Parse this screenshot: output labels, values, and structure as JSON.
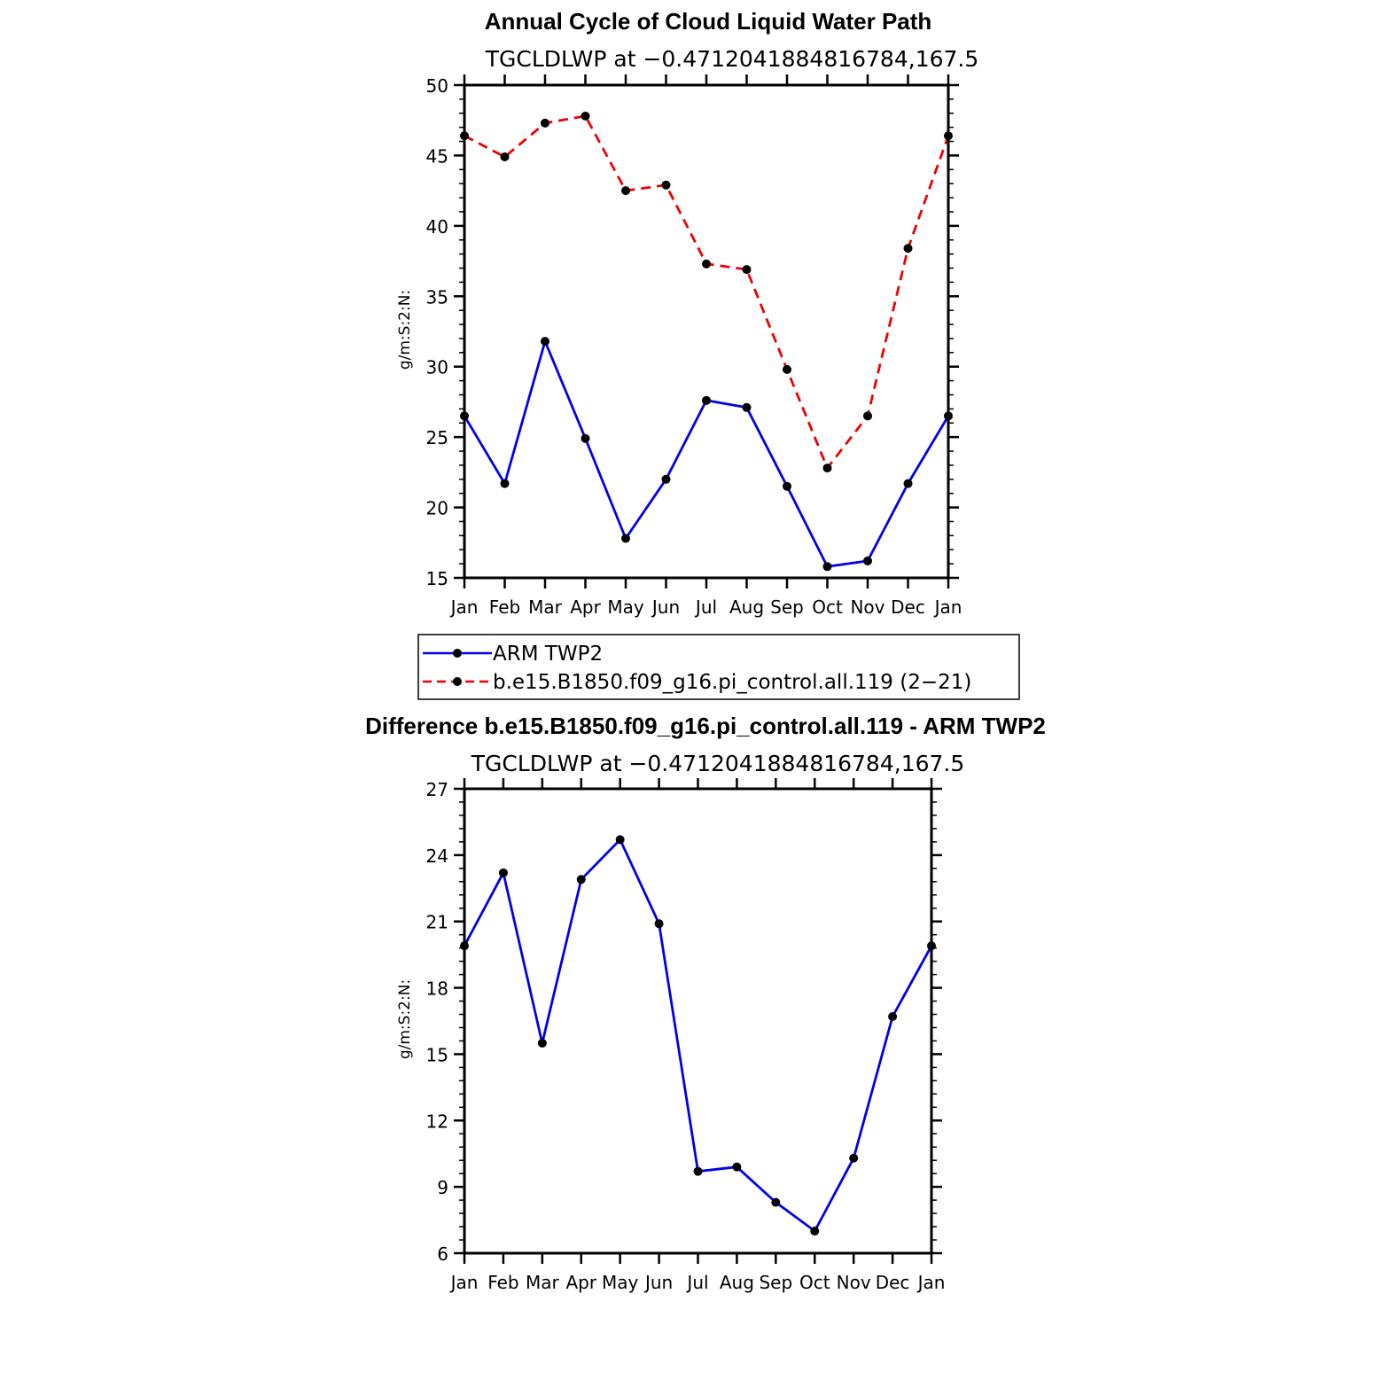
{
  "chart_data": [
    {
      "type": "line",
      "title": "Annual Cycle of Cloud Liquid Water Path",
      "subtitle": "TGCLDLWP  at  −0.4712041884816784,167.5",
      "ylabel": "g/m:S:2:N:",
      "xlabel": "",
      "categories": [
        "Jan",
        "Feb",
        "Mar",
        "Apr",
        "May",
        "Jun",
        "Jul",
        "Aug",
        "Sep",
        "Oct",
        "Nov",
        "Dec",
        "Jan"
      ],
      "ylim": [
        15,
        50
      ],
      "yticks": [
        "15",
        "20",
        "25",
        "30",
        "35",
        "40",
        "45",
        "50"
      ],
      "series": [
        {
          "name": "ARM TWP2",
          "color": "#0000ee",
          "dash": "solid",
          "values": [
            26.5,
            21.7,
            31.8,
            24.9,
            17.8,
            22.0,
            27.6,
            27.1,
            21.5,
            15.8,
            16.2,
            21.7,
            26.5
          ]
        },
        {
          "name": "b.e15.B1850.f09_g16.pi_control.all.119 (2−21)",
          "color": "#ee0000",
          "dash": "dashed",
          "values": [
            46.4,
            44.9,
            47.3,
            47.8,
            42.5,
            42.9,
            37.3,
            36.9,
            29.8,
            22.8,
            26.5,
            38.4,
            46.4
          ]
        }
      ],
      "legend": "below"
    },
    {
      "type": "line",
      "title": "Difference b.e15.B1850.f09_g16.pi_control.all.119 - ARM TWP2",
      "subtitle": "TGCLDLWP  at  −0.4712041884816784,167.5",
      "ylabel": "g/m:S:2:N:",
      "xlabel": "",
      "categories": [
        "Jan",
        "Feb",
        "Mar",
        "Apr",
        "May",
        "Jun",
        "Jul",
        "Aug",
        "Sep",
        "Oct",
        "Nov",
        "Dec",
        "Jan"
      ],
      "ylim": [
        6,
        27
      ],
      "yticks": [
        "6",
        "9",
        "12",
        "15",
        "18",
        "21",
        "24",
        "27"
      ],
      "series": [
        {
          "name": "Difference",
          "color": "#0000ee",
          "dash": "solid",
          "values": [
            19.9,
            23.2,
            15.5,
            22.9,
            24.7,
            20.9,
            9.7,
            9.9,
            8.3,
            7.0,
            10.3,
            16.7,
            19.9
          ]
        }
      ]
    }
  ]
}
